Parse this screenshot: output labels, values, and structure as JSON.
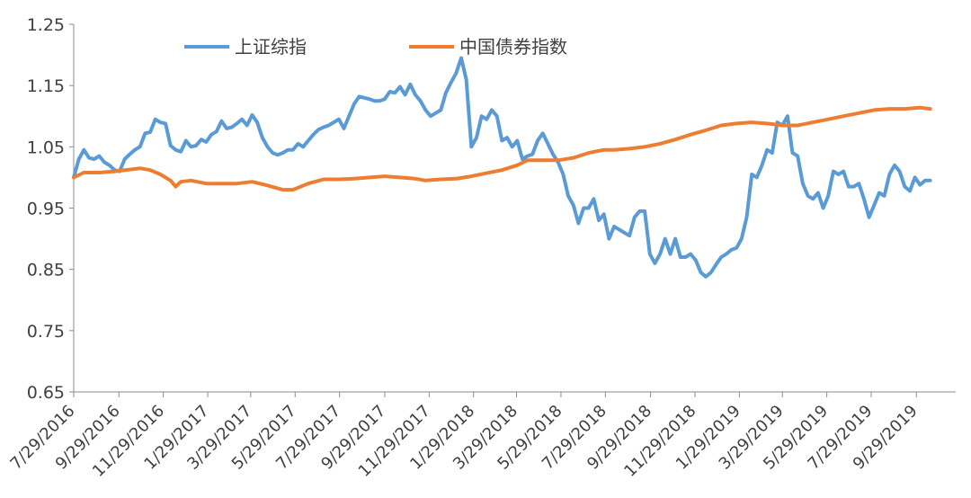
{
  "chart_data": {
    "type": "line",
    "title": "",
    "xlabel": "",
    "ylabel": "",
    "ylim": [
      0.65,
      1.25
    ],
    "y_ticks": [
      "0.65",
      "0.75",
      "0.85",
      "0.95",
      "1.05",
      "1.15",
      "1.25"
    ],
    "x_ticks": [
      "7/29/2016",
      "9/29/2016",
      "11/29/2016",
      "1/29/2017",
      "3/29/2017",
      "5/29/2017",
      "7/29/2017",
      "9/29/2017",
      "11/29/2017",
      "1/29/2018",
      "3/29/2018",
      "5/29/2018",
      "7/29/2018",
      "9/29/2018",
      "11/29/2018",
      "1/29/2019",
      "3/29/2019",
      "5/29/2019",
      "7/29/2019",
      "9/29/2019"
    ],
    "x_range": [
      "2016-07-29",
      "2019-11-22"
    ],
    "grid": false,
    "legend_position": "top",
    "series": [
      {
        "name": "上证综指",
        "color": "#5B9BD5",
        "points": [
          [
            "2016-07-29",
            1.0
          ],
          [
            "2016-08-05",
            1.03
          ],
          [
            "2016-08-12",
            1.045
          ],
          [
            "2016-08-19",
            1.032
          ],
          [
            "2016-08-26",
            1.03
          ],
          [
            "2016-09-02",
            1.035
          ],
          [
            "2016-09-09",
            1.025
          ],
          [
            "2016-09-16",
            1.02
          ],
          [
            "2016-09-23",
            1.012
          ],
          [
            "2016-09-30",
            1.01
          ],
          [
            "2016-10-07",
            1.03
          ],
          [
            "2016-10-14",
            1.038
          ],
          [
            "2016-10-21",
            1.045
          ],
          [
            "2016-10-28",
            1.05
          ],
          [
            "2016-11-04",
            1.072
          ],
          [
            "2016-11-11",
            1.074
          ],
          [
            "2016-11-18",
            1.095
          ],
          [
            "2016-11-25",
            1.09
          ],
          [
            "2016-12-02",
            1.088
          ],
          [
            "2016-12-09",
            1.052
          ],
          [
            "2016-12-16",
            1.045
          ],
          [
            "2016-12-23",
            1.042
          ],
          [
            "2016-12-30",
            1.06
          ],
          [
            "2017-01-06",
            1.05
          ],
          [
            "2017-01-13",
            1.052
          ],
          [
            "2017-01-20",
            1.062
          ],
          [
            "2017-01-27",
            1.058
          ],
          [
            "2017-02-03",
            1.07
          ],
          [
            "2017-02-10",
            1.075
          ],
          [
            "2017-02-17",
            1.092
          ],
          [
            "2017-02-24",
            1.08
          ],
          [
            "2017-03-03",
            1.082
          ],
          [
            "2017-03-10",
            1.088
          ],
          [
            "2017-03-17",
            1.095
          ],
          [
            "2017-03-24",
            1.085
          ],
          [
            "2017-03-31",
            1.102
          ],
          [
            "2017-04-07",
            1.09
          ],
          [
            "2017-04-14",
            1.065
          ],
          [
            "2017-04-21",
            1.05
          ],
          [
            "2017-04-28",
            1.04
          ],
          [
            "2017-05-05",
            1.037
          ],
          [
            "2017-05-12",
            1.04
          ],
          [
            "2017-05-19",
            1.045
          ],
          [
            "2017-05-26",
            1.045
          ],
          [
            "2017-06-02",
            1.055
          ],
          [
            "2017-06-09",
            1.05
          ],
          [
            "2017-06-16",
            1.06
          ],
          [
            "2017-06-23",
            1.07
          ],
          [
            "2017-06-30",
            1.078
          ],
          [
            "2017-07-07",
            1.082
          ],
          [
            "2017-07-14",
            1.085
          ],
          [
            "2017-07-21",
            1.09
          ],
          [
            "2017-07-28",
            1.095
          ],
          [
            "2017-08-04",
            1.08
          ],
          [
            "2017-08-11",
            1.1
          ],
          [
            "2017-08-18",
            1.12
          ],
          [
            "2017-08-25",
            1.132
          ],
          [
            "2017-09-01",
            1.13
          ],
          [
            "2017-09-08",
            1.128
          ],
          [
            "2017-09-15",
            1.125
          ],
          [
            "2017-09-22",
            1.125
          ],
          [
            "2017-09-29",
            1.128
          ],
          [
            "2017-10-06",
            1.14
          ],
          [
            "2017-10-13",
            1.138
          ],
          [
            "2017-10-20",
            1.148
          ],
          [
            "2017-10-27",
            1.135
          ],
          [
            "2017-11-03",
            1.152
          ],
          [
            "2017-11-10",
            1.135
          ],
          [
            "2017-11-17",
            1.125
          ],
          [
            "2017-11-24",
            1.11
          ],
          [
            "2017-12-01",
            1.1
          ],
          [
            "2017-12-08",
            1.105
          ],
          [
            "2017-12-15",
            1.11
          ],
          [
            "2017-12-22",
            1.138
          ],
          [
            "2017-12-29",
            1.155
          ],
          [
            "2018-01-05",
            1.17
          ],
          [
            "2018-01-12",
            1.195
          ],
          [
            "2018-01-19",
            1.16
          ],
          [
            "2018-01-26",
            1.05
          ],
          [
            "2018-02-02",
            1.065
          ],
          [
            "2018-02-09",
            1.1
          ],
          [
            "2018-02-16",
            1.095
          ],
          [
            "2018-02-23",
            1.11
          ],
          [
            "2018-03-02",
            1.1
          ],
          [
            "2018-03-09",
            1.06
          ],
          [
            "2018-03-16",
            1.065
          ],
          [
            "2018-03-23",
            1.05
          ],
          [
            "2018-03-30",
            1.06
          ],
          [
            "2018-04-06",
            1.03
          ],
          [
            "2018-04-13",
            1.035
          ],
          [
            "2018-04-20",
            1.038
          ],
          [
            "2018-04-27",
            1.06
          ],
          [
            "2018-05-04",
            1.072
          ],
          [
            "2018-05-11",
            1.055
          ],
          [
            "2018-05-18",
            1.038
          ],
          [
            "2018-05-25",
            1.025
          ],
          [
            "2018-06-01",
            1.005
          ],
          [
            "2018-06-08",
            0.97
          ],
          [
            "2018-06-15",
            0.955
          ],
          [
            "2018-06-22",
            0.925
          ],
          [
            "2018-06-29",
            0.95
          ],
          [
            "2018-07-06",
            0.95
          ],
          [
            "2018-07-13",
            0.965
          ],
          [
            "2018-07-20",
            0.93
          ],
          [
            "2018-07-27",
            0.94
          ],
          [
            "2018-08-03",
            0.9
          ],
          [
            "2018-08-10",
            0.92
          ],
          [
            "2018-08-17",
            0.915
          ],
          [
            "2018-08-24",
            0.91
          ],
          [
            "2018-08-31",
            0.905
          ],
          [
            "2018-09-07",
            0.935
          ],
          [
            "2018-09-14",
            0.945
          ],
          [
            "2018-09-21",
            0.945
          ],
          [
            "2018-09-28",
            0.875
          ],
          [
            "2018-10-05",
            0.86
          ],
          [
            "2018-10-12",
            0.875
          ],
          [
            "2018-10-19",
            0.9
          ],
          [
            "2018-10-26",
            0.875
          ],
          [
            "2018-11-02",
            0.9
          ],
          [
            "2018-11-09",
            0.87
          ],
          [
            "2018-11-16",
            0.87
          ],
          [
            "2018-11-23",
            0.875
          ],
          [
            "2018-11-30",
            0.865
          ],
          [
            "2018-12-07",
            0.845
          ],
          [
            "2018-12-14",
            0.838
          ],
          [
            "2018-12-21",
            0.845
          ],
          [
            "2018-12-28",
            0.858
          ],
          [
            "2019-01-04",
            0.87
          ],
          [
            "2019-01-11",
            0.875
          ],
          [
            "2019-01-18",
            0.882
          ],
          [
            "2019-01-25",
            0.885
          ],
          [
            "2019-02-01",
            0.9
          ],
          [
            "2019-02-08",
            0.935
          ],
          [
            "2019-02-15",
            1.005
          ],
          [
            "2019-02-22",
            1.0
          ],
          [
            "2019-03-01",
            1.02
          ],
          [
            "2019-03-08",
            1.045
          ],
          [
            "2019-03-15",
            1.04
          ],
          [
            "2019-03-22",
            1.09
          ],
          [
            "2019-03-29",
            1.085
          ],
          [
            "2019-04-05",
            1.1
          ],
          [
            "2019-04-12",
            1.04
          ],
          [
            "2019-04-19",
            1.035
          ],
          [
            "2019-04-26",
            0.99
          ],
          [
            "2019-05-03",
            0.97
          ],
          [
            "2019-05-10",
            0.965
          ],
          [
            "2019-05-17",
            0.975
          ],
          [
            "2019-05-24",
            0.95
          ],
          [
            "2019-05-31",
            0.97
          ],
          [
            "2019-06-07",
            1.01
          ],
          [
            "2019-06-14",
            1.005
          ],
          [
            "2019-06-21",
            1.01
          ],
          [
            "2019-06-28",
            0.985
          ],
          [
            "2019-07-05",
            0.985
          ],
          [
            "2019-07-12",
            0.99
          ],
          [
            "2019-07-19",
            0.965
          ],
          [
            "2019-07-26",
            0.935
          ],
          [
            "2019-08-02",
            0.955
          ],
          [
            "2019-08-09",
            0.975
          ],
          [
            "2019-08-16",
            0.97
          ],
          [
            "2019-08-23",
            1.005
          ],
          [
            "2019-08-30",
            1.02
          ],
          [
            "2019-09-06",
            1.01
          ],
          [
            "2019-09-13",
            0.985
          ],
          [
            "2019-09-20",
            0.978
          ],
          [
            "2019-09-27",
            1.0
          ],
          [
            "2019-10-04",
            0.988
          ],
          [
            "2019-10-11",
            0.995
          ],
          [
            "2019-10-18",
            0.995
          ]
        ]
      },
      {
        "name": "中国债券指数",
        "color": "#ED7D31",
        "points": [
          [
            "2016-07-29",
            1.0
          ],
          [
            "2016-08-12",
            1.008
          ],
          [
            "2016-09-02",
            1.008
          ],
          [
            "2016-09-23",
            1.01
          ],
          [
            "2016-10-14",
            1.013
          ],
          [
            "2016-10-28",
            1.015
          ],
          [
            "2016-11-11",
            1.012
          ],
          [
            "2016-11-25",
            1.005
          ],
          [
            "2016-12-09",
            0.995
          ],
          [
            "2016-12-16",
            0.985
          ],
          [
            "2016-12-23",
            0.993
          ],
          [
            "2017-01-06",
            0.995
          ],
          [
            "2017-01-27",
            0.99
          ],
          [
            "2017-02-17",
            0.99
          ],
          [
            "2017-03-10",
            0.99
          ],
          [
            "2017-03-31",
            0.993
          ],
          [
            "2017-04-21",
            0.987
          ],
          [
            "2017-05-12",
            0.98
          ],
          [
            "2017-05-26",
            0.98
          ],
          [
            "2017-06-16",
            0.99
          ],
          [
            "2017-07-07",
            0.997
          ],
          [
            "2017-07-28",
            0.997
          ],
          [
            "2017-08-18",
            0.998
          ],
          [
            "2017-09-08",
            1.0
          ],
          [
            "2017-09-29",
            1.002
          ],
          [
            "2017-10-20",
            1.0
          ],
          [
            "2017-11-10",
            0.998
          ],
          [
            "2017-11-24",
            0.995
          ],
          [
            "2017-12-15",
            0.997
          ],
          [
            "2018-01-05",
            0.998
          ],
          [
            "2018-01-26",
            1.002
          ],
          [
            "2018-02-16",
            1.007
          ],
          [
            "2018-03-09",
            1.012
          ],
          [
            "2018-03-30",
            1.02
          ],
          [
            "2018-04-13",
            1.028
          ],
          [
            "2018-05-04",
            1.028
          ],
          [
            "2018-05-25",
            1.028
          ],
          [
            "2018-06-15",
            1.032
          ],
          [
            "2018-07-06",
            1.04
          ],
          [
            "2018-07-27",
            1.045
          ],
          [
            "2018-08-10",
            1.045
          ],
          [
            "2018-08-31",
            1.047
          ],
          [
            "2018-09-21",
            1.05
          ],
          [
            "2018-10-12",
            1.055
          ],
          [
            "2018-11-02",
            1.062
          ],
          [
            "2018-11-23",
            1.07
          ],
          [
            "2018-12-14",
            1.077
          ],
          [
            "2019-01-04",
            1.085
          ],
          [
            "2019-01-25",
            1.088
          ],
          [
            "2019-02-15",
            1.09
          ],
          [
            "2019-03-08",
            1.088
          ],
          [
            "2019-03-29",
            1.085
          ],
          [
            "2019-04-19",
            1.085
          ],
          [
            "2019-05-10",
            1.09
          ],
          [
            "2019-05-31",
            1.095
          ],
          [
            "2019-06-21",
            1.1
          ],
          [
            "2019-07-12",
            1.105
          ],
          [
            "2019-08-02",
            1.11
          ],
          [
            "2019-08-23",
            1.112
          ],
          [
            "2019-09-13",
            1.112
          ],
          [
            "2019-10-04",
            1.114
          ],
          [
            "2019-10-18",
            1.112
          ]
        ]
      }
    ]
  }
}
